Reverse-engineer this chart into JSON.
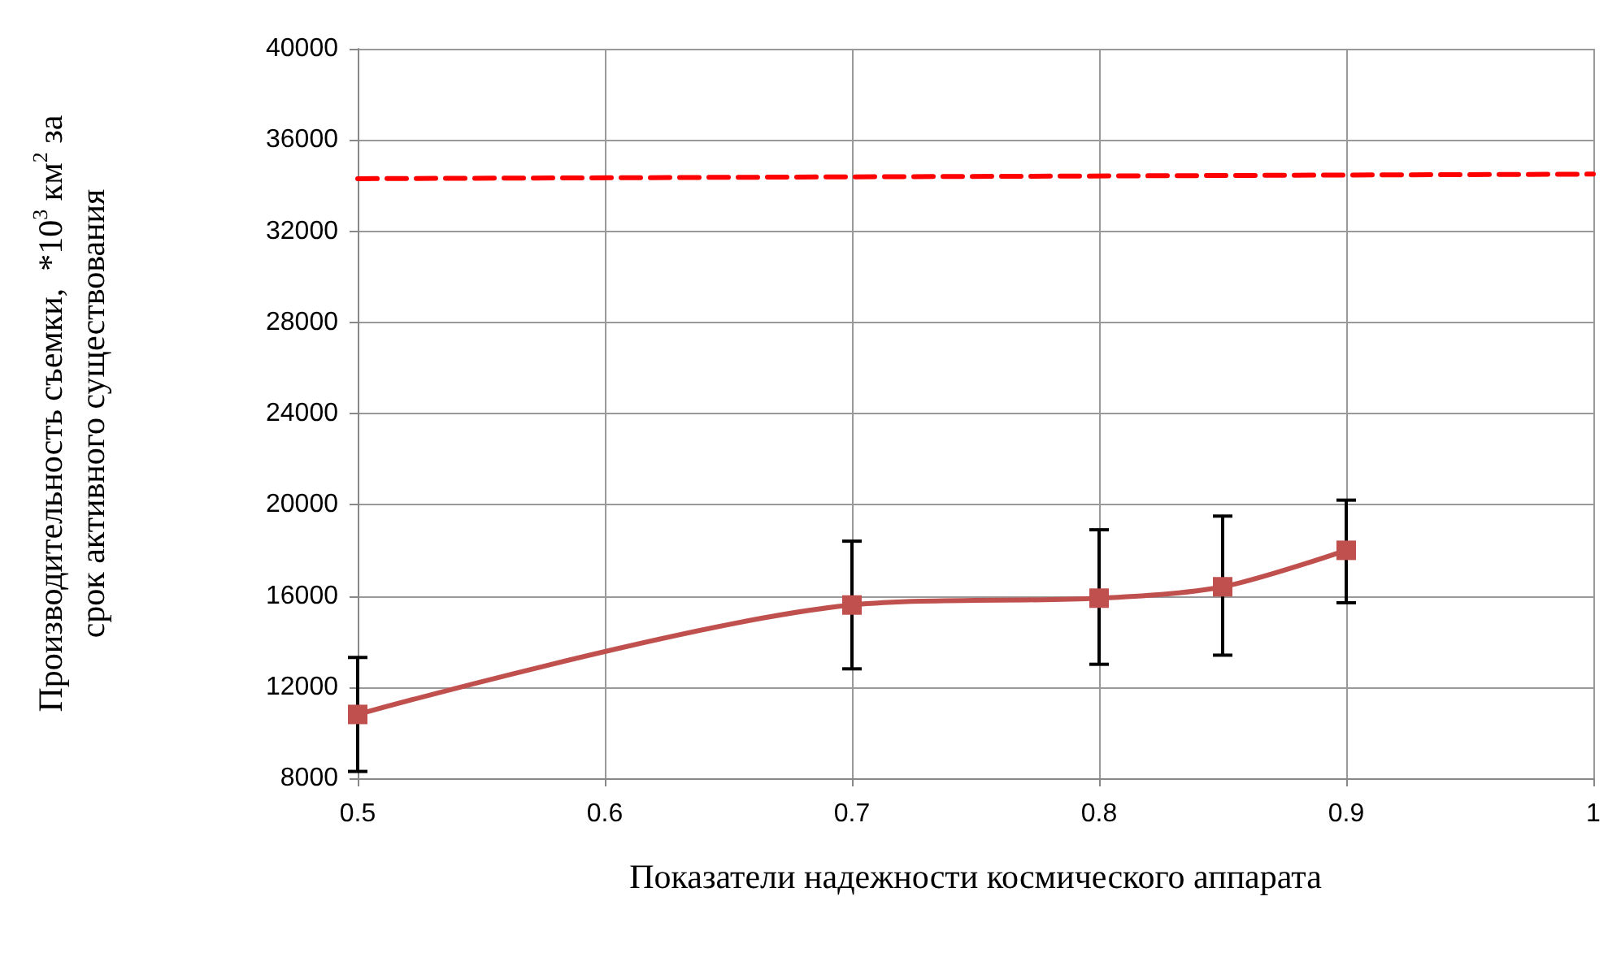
{
  "chart_data": {
    "type": "line",
    "xlabel": "Показатели надежности космического аппарата",
    "ylabel": "Производительность съемки,  *10$^{3}$ км$^{2}$ за срок активного существования",
    "x": [
      0.5,
      0.7,
      0.8,
      0.85,
      0.9
    ],
    "series": [
      {
        "color": "#c0504d",
        "values": [
          10800,
          15600,
          15900,
          16400,
          18000
        ],
        "errors": [
          [
            8300,
            13300
          ],
          [
            12800,
            18400
          ],
          [
            13000,
            18900
          ],
          [
            13400,
            19500
          ],
          [
            15700,
            20200
          ]
        ],
        "marker": "square",
        "line_style": "solid"
      },
      {
        "color": "#ff0000",
        "x": [
          0.5,
          1
        ],
        "values": [
          34300,
          34500
        ],
        "marker": "none",
        "line_style": "dashed"
      }
    ],
    "xlim": [
      0.5,
      1
    ],
    "xticks": [
      0.5,
      0.6,
      0.7,
      0.8,
      0.9,
      1
    ],
    "ylim": [
      8000,
      40000
    ],
    "yticks": [
      8000,
      12000,
      16000,
      20000,
      24000,
      28000,
      32000,
      36000,
      40000
    ],
    "grid": true
  }
}
